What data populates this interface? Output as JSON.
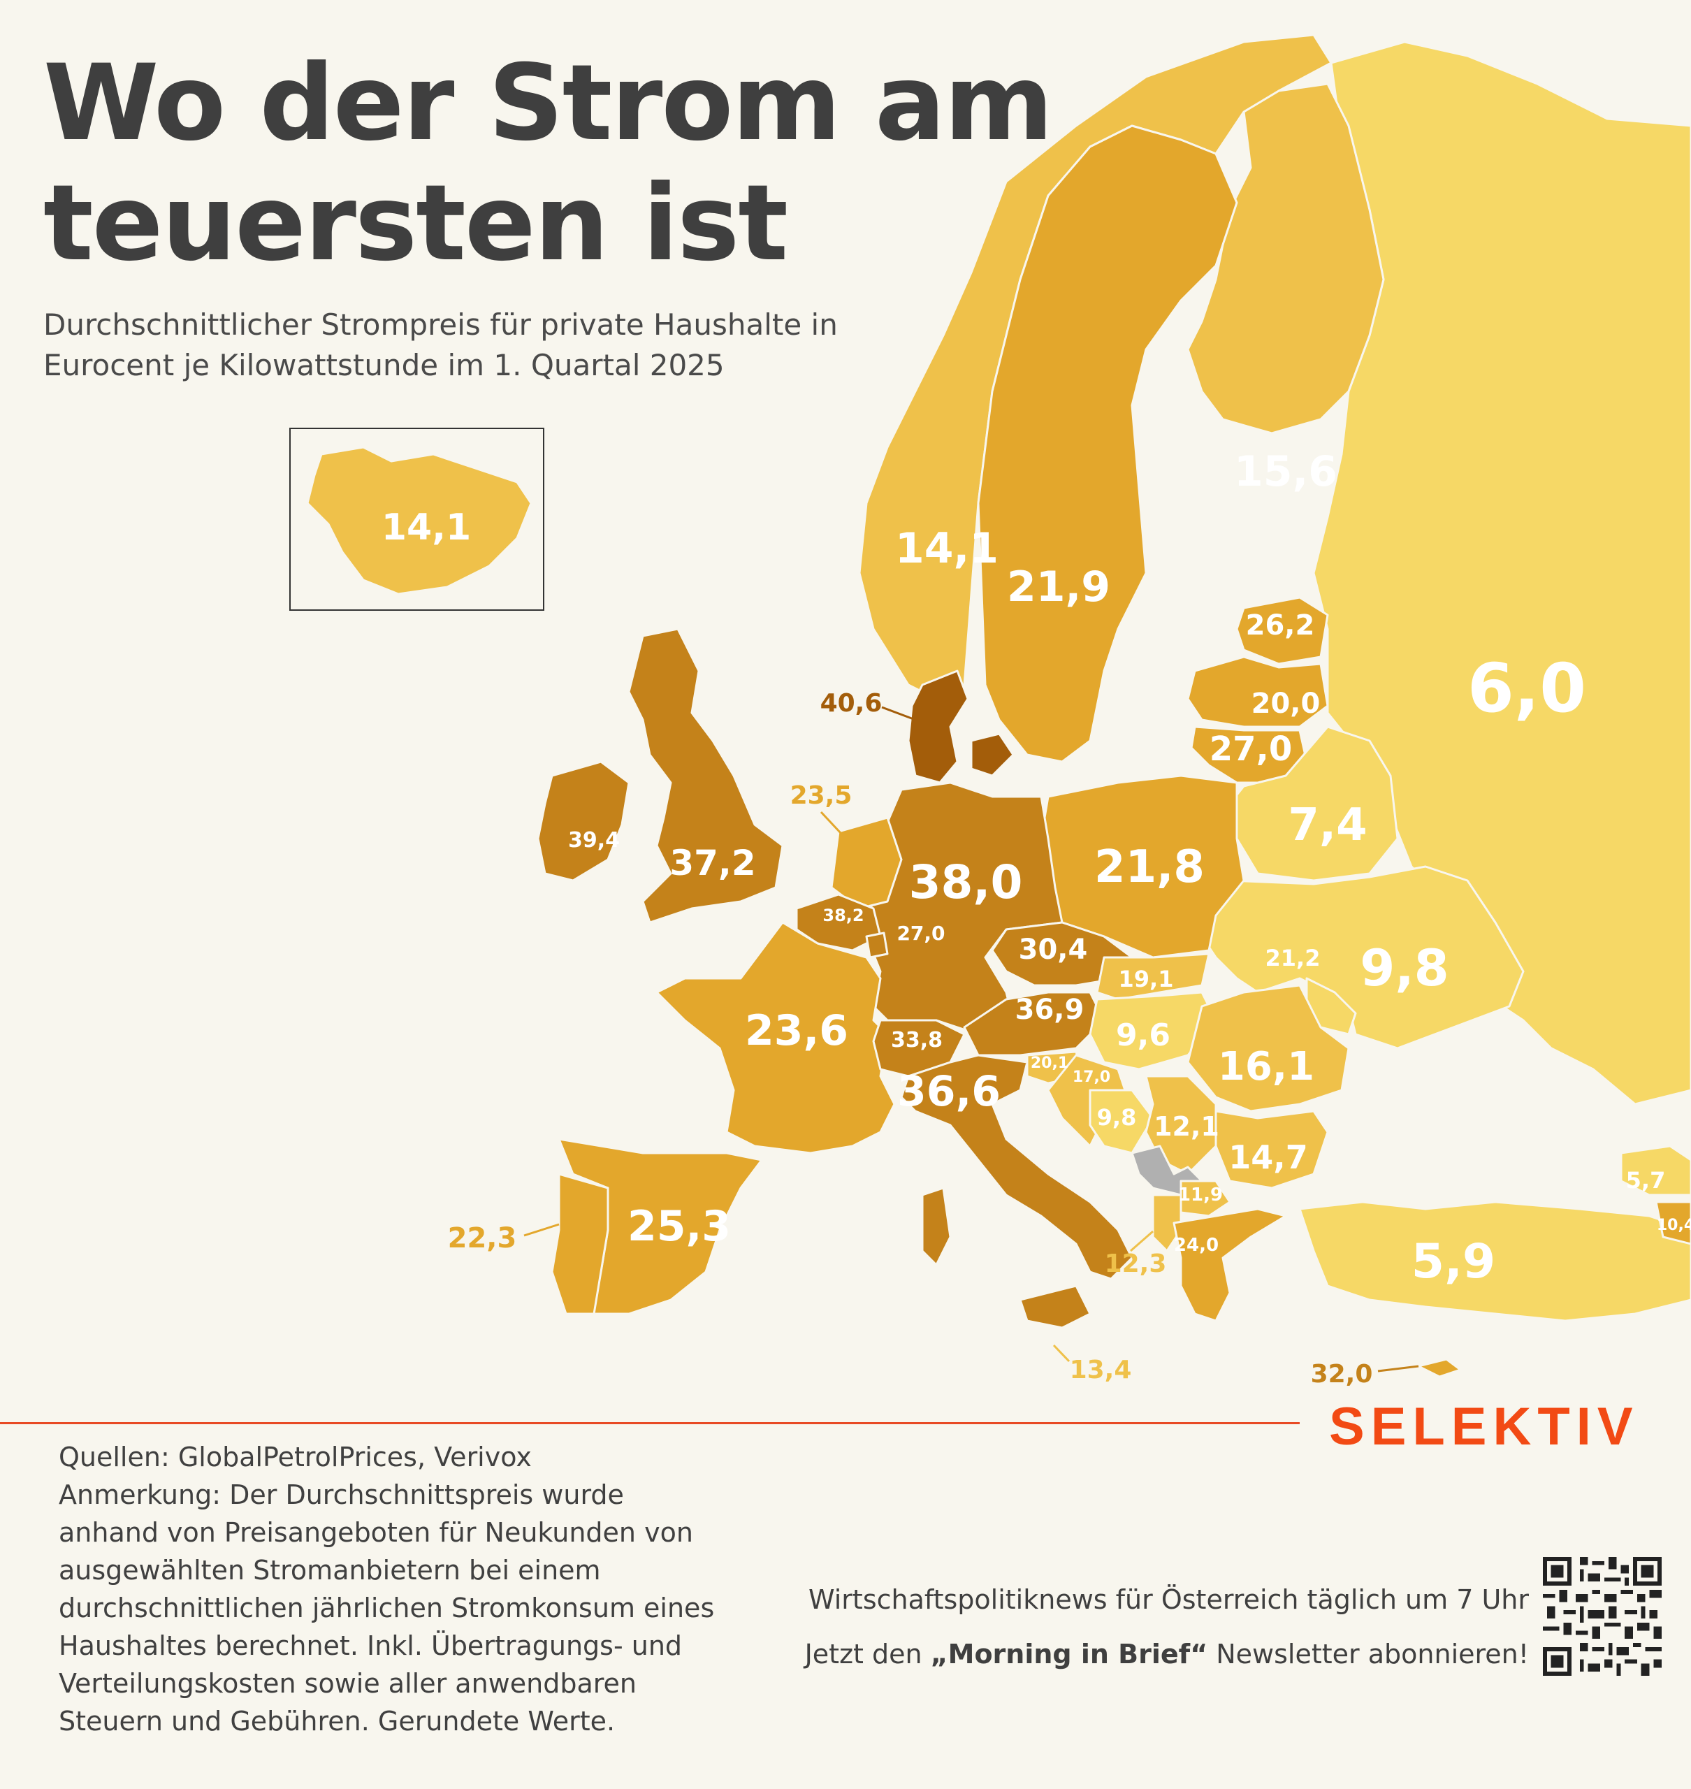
{
  "title": "Wo der Strom am teuersten ist",
  "subtitle": "Durchschnittlicher Strompreis für private Haushalte in Eurocent je Kilowattstunde im 1. Quartal 2025",
  "brand": "SELEKTIV",
  "colors": {
    "background": "#f8f6ee",
    "accent": "#f24a14",
    "tier_low": "#f6d866",
    "tier_mid": "#efc14a",
    "tier_high": "#e3a72c",
    "tier_top": "#c4821a",
    "tier_max": "#a35d0a",
    "no_data": "#b0b0b0"
  },
  "notes": {
    "sources": "Quellen: GlobalPetrolPrices, Verivox",
    "remark": "Anmerkung: Der Durchschnittspreis wurde anhand von Preisangeboten für Neukunden von ausgewählten Stromanbietern bei einem durchschnittlichen jährlichen Stromkonsum eines Haushaltes berechnet. Inkl. Übertragungs- und Verteilungskosten sowie aller anwendbaren Steuern und Gebühren. Gerundete Werte."
  },
  "promo": {
    "line1": "Wirtschaftspolitiknews für Österreich täglich um 7 Uhr",
    "line2_before": "Jetzt den ",
    "line2_bold": "„Morning in Brief“",
    "line2_after": " Newsletter abonnieren!"
  },
  "map": {
    "unit": "Eurocent je kWh",
    "regions": {
      "iceland": "14,1",
      "norway": "14,1",
      "sweden": "21,9",
      "finland": "15,6",
      "russia": "6,0",
      "estonia": "26,2",
      "latvia": "20,0",
      "lithuania": "27,0",
      "belarus": "7,4",
      "denmark": "40,6",
      "uk": "37,2",
      "ireland": "39,4",
      "netherlands": "23,5",
      "belgium": "38,2",
      "luxembourg": "27,0",
      "germany": "38,0",
      "poland": "21,8",
      "czechia": "30,4",
      "slovakia": "19,1",
      "austria": "36,9",
      "hungary": "9,6",
      "ukraine": "9,8",
      "moldova": "21,2",
      "romania": "16,1",
      "switzerland": "33,8",
      "italy": "36,6",
      "slovenia": "20,1",
      "croatia": "17,0",
      "bosnia": "9,8",
      "serbia": "12,1",
      "bulgaria": "14,7",
      "north_macedonia": "11,9",
      "albania": "12,3",
      "greece": "24,0",
      "france": "23,6",
      "spain": "25,3",
      "portugal": "22,3",
      "malta": "13,4",
      "cyprus": "32,0",
      "turkey": "5,9",
      "georgia": "5,7",
      "armenia": "10,4"
    }
  }
}
